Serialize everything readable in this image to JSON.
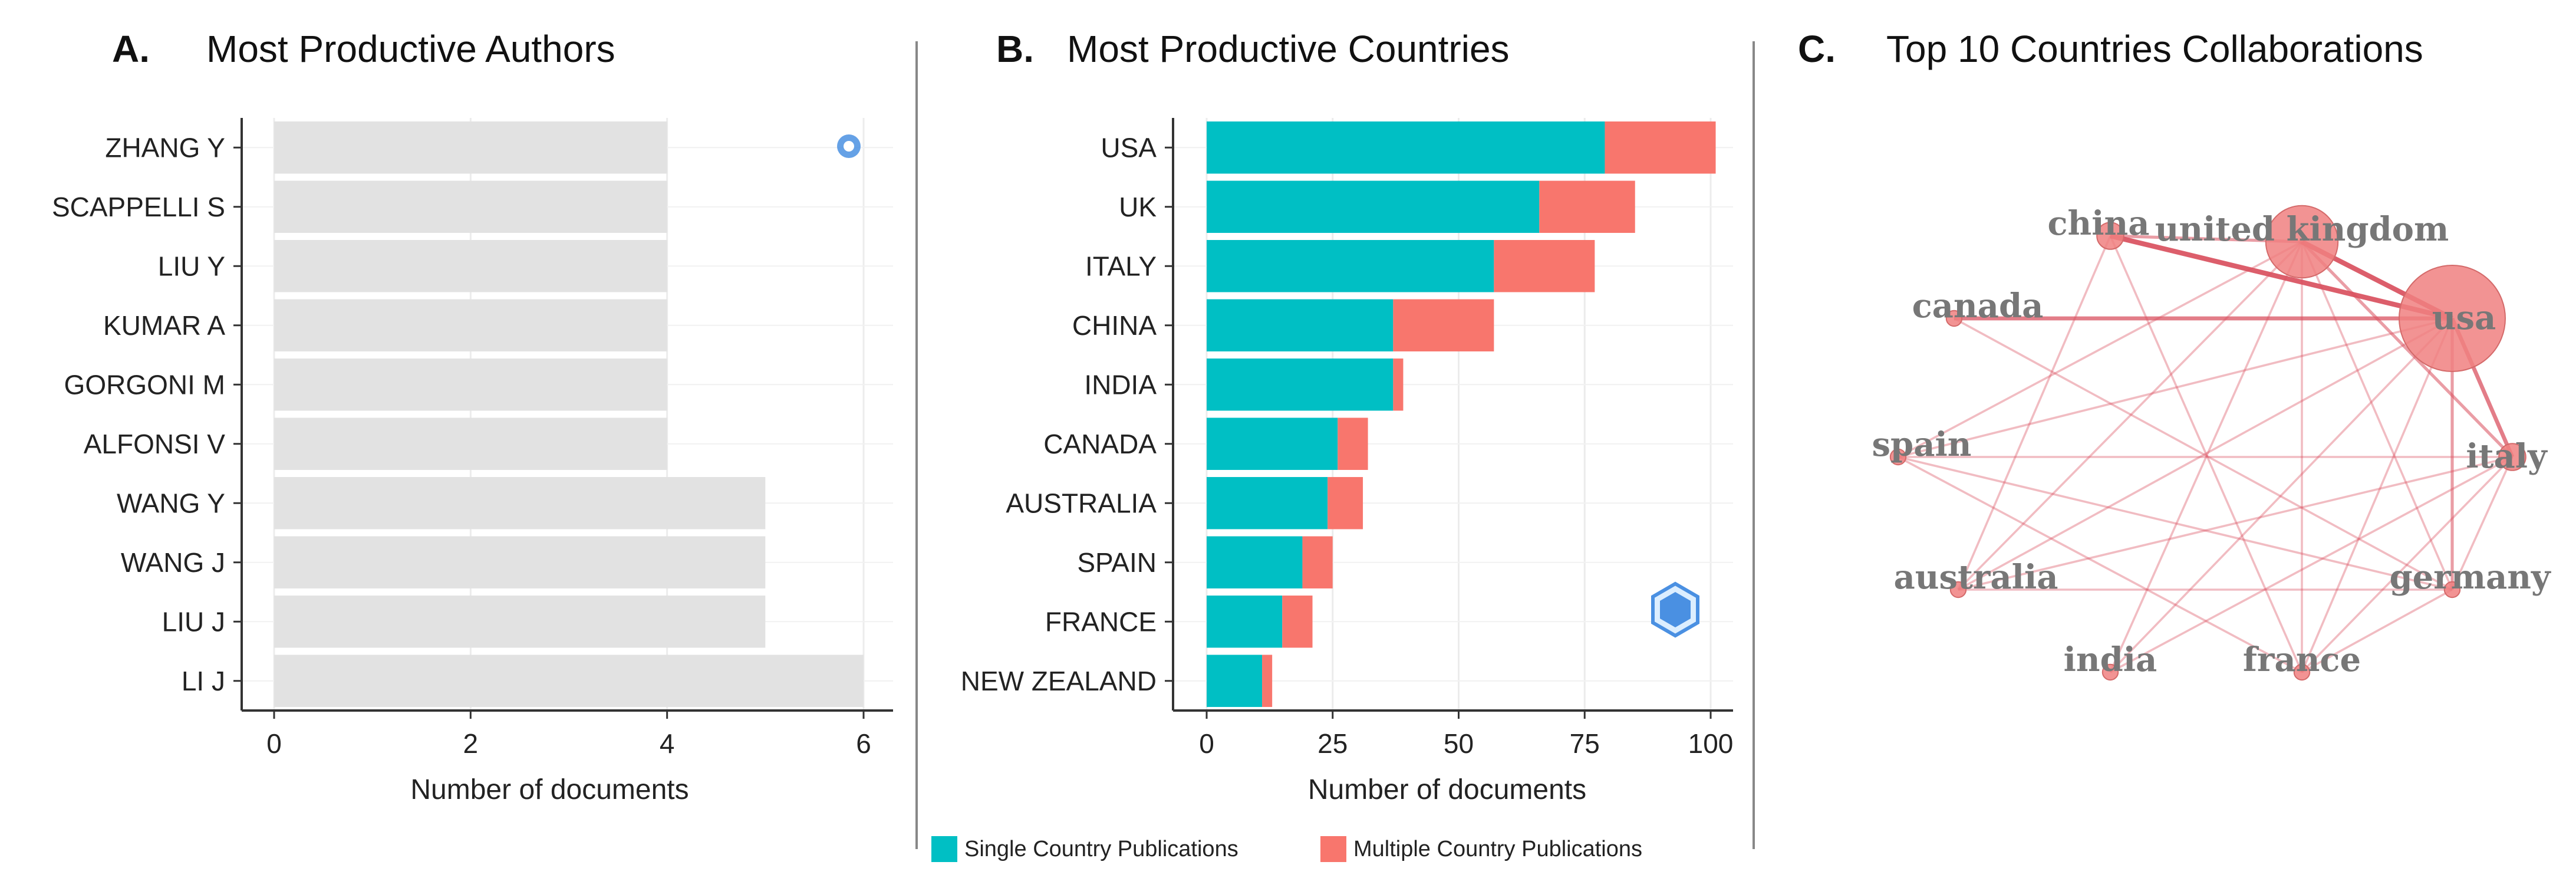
{
  "panels": {
    "a": {
      "letter": "A.",
      "title": "Most Productive Authors"
    },
    "b": {
      "letter": "B.",
      "title": "Most Productive Countries"
    },
    "c": {
      "letter": "C.",
      "title": "Top 10 Countries Collaborations"
    }
  },
  "legend": {
    "single": "Single Country Publications",
    "multiple": "Multiple Country Publications"
  },
  "colors": {
    "bar_gray": "#e2e2e2",
    "single": "#00bfc4",
    "multiple": "#f8766d",
    "node": "#f08080",
    "edge": "#d9505e"
  },
  "chart_data": [
    {
      "type": "bar",
      "orientation": "horizontal",
      "title": "Most Productive Authors",
      "xlabel": "Number of documents",
      "categories": [
        "ZHANG Y",
        "SCAPPELLI S",
        "LIU Y",
        "KUMAR A",
        "GORGONI M",
        "ALFONSI V",
        "WANG Y",
        "WANG J",
        "LIU J",
        "LI J"
      ],
      "values": [
        4,
        4,
        4,
        4,
        4,
        4,
        5,
        5,
        5,
        6
      ],
      "xlim": [
        0,
        6
      ],
      "xticks": [
        0,
        2,
        4,
        6
      ]
    },
    {
      "type": "bar",
      "orientation": "horizontal",
      "stacked": true,
      "title": "Most Productive Countries",
      "xlabel": "Number of documents",
      "categories": [
        "USA",
        "UK",
        "ITALY",
        "CHINA",
        "INDIA",
        "CANADA",
        "AUSTRALIA",
        "SPAIN",
        "FRANCE",
        "NEW ZEALAND"
      ],
      "series": [
        {
          "name": "Single Country Publications",
          "values": [
            79,
            66,
            57,
            37,
            37,
            26,
            24,
            19,
            15,
            11
          ]
        },
        {
          "name": "Multiple Country Publications",
          "values": [
            22,
            19,
            20,
            20,
            2,
            6,
            7,
            6,
            6,
            2
          ]
        }
      ],
      "xlim": [
        0,
        100
      ],
      "xticks": [
        0,
        25,
        50,
        75,
        100
      ],
      "legend_position": "bottom"
    },
    {
      "type": "network",
      "title": "Top 10 Countries Collaborations",
      "nodes": [
        {
          "id": "usa",
          "label": "usa",
          "weight": 5
        },
        {
          "id": "united kingdom",
          "label": "united kingdom",
          "weight": 4
        },
        {
          "id": "china",
          "label": "china",
          "weight": 2
        },
        {
          "id": "canada",
          "label": "canada",
          "weight": 1
        },
        {
          "id": "spain",
          "label": "spain",
          "weight": 1
        },
        {
          "id": "italy",
          "label": "italy",
          "weight": 2
        },
        {
          "id": "australia",
          "label": "australia",
          "weight": 1
        },
        {
          "id": "germany",
          "label": "germany",
          "weight": 1
        },
        {
          "id": "india",
          "label": "india",
          "weight": 1
        },
        {
          "id": "france",
          "label": "france",
          "weight": 1
        }
      ],
      "edges": [
        {
          "source": "usa",
          "target": "united kingdom",
          "weight": 4
        },
        {
          "source": "usa",
          "target": "china",
          "weight": 4
        },
        {
          "source": "usa",
          "target": "canada",
          "weight": 3
        },
        {
          "source": "usa",
          "target": "italy",
          "weight": 3
        },
        {
          "source": "usa",
          "target": "germany",
          "weight": 2
        },
        {
          "source": "usa",
          "target": "spain",
          "weight": 1
        },
        {
          "source": "usa",
          "target": "australia",
          "weight": 1
        },
        {
          "source": "usa",
          "target": "india",
          "weight": 1
        },
        {
          "source": "usa",
          "target": "france",
          "weight": 1
        },
        {
          "source": "united kingdom",
          "target": "china",
          "weight": 2
        },
        {
          "source": "united kingdom",
          "target": "italy",
          "weight": 2
        },
        {
          "source": "united kingdom",
          "target": "australia",
          "weight": 1
        },
        {
          "source": "united kingdom",
          "target": "spain",
          "weight": 1
        },
        {
          "source": "united kingdom",
          "target": "germany",
          "weight": 1
        },
        {
          "source": "united kingdom",
          "target": "france",
          "weight": 1
        },
        {
          "source": "united kingdom",
          "target": "india",
          "weight": 1
        },
        {
          "source": "china",
          "target": "australia",
          "weight": 1
        },
        {
          "source": "china",
          "target": "france",
          "weight": 1
        },
        {
          "source": "italy",
          "target": "spain",
          "weight": 1
        },
        {
          "source": "italy",
          "target": "australia",
          "weight": 1
        },
        {
          "source": "italy",
          "target": "germany",
          "weight": 1
        },
        {
          "source": "italy",
          "target": "france",
          "weight": 1
        },
        {
          "source": "canada",
          "target": "germany",
          "weight": 1
        },
        {
          "source": "spain",
          "target": "germany",
          "weight": 1
        },
        {
          "source": "spain",
          "target": "france",
          "weight": 1
        },
        {
          "source": "australia",
          "target": "germany",
          "weight": 1
        },
        {
          "source": "germany",
          "target": "france",
          "weight": 1
        },
        {
          "source": "india",
          "target": "italy",
          "weight": 1
        }
      ]
    }
  ]
}
